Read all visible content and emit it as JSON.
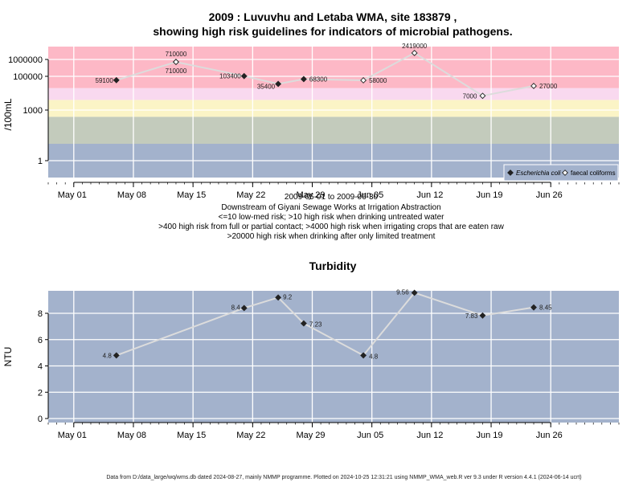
{
  "chart_data": [
    {
      "type": "line",
      "title": "2009 : Luvuvhu and Letaba WMA, site 183879 ,",
      "subtitle": "showing high risk guidelines for indicators of microbial pathogens.",
      "ylabel": "/100mL",
      "y_scale": "log",
      "yticks": [
        "1",
        "1000",
        "100000",
        "1000000"
      ],
      "xticks": [
        "May 01",
        "May 08",
        "May 15",
        "May 22",
        "May 29",
        "Jun 05",
        "Jun 12",
        "Jun 19",
        "Jun 26"
      ],
      "xlim": [
        "2009-04-28",
        "2009-07-04"
      ],
      "risk_bands": [
        {
          "from": 0.1,
          "to": 10,
          "color": "#a3b2cc"
        },
        {
          "from": 10,
          "to": 400,
          "color": "#c3cbbc"
        },
        {
          "from": 400,
          "to": 4000,
          "color": "#fbf4c6"
        },
        {
          "from": 4000,
          "to": 20000,
          "color": "#f9d9ef"
        },
        {
          "from": 20000,
          "to": 8000000,
          "color": "#fdb8c6"
        }
      ],
      "series": [
        {
          "name": "Escherichia coli",
          "marker": "filled-diamond",
          "points": [
            {
              "date": "2009-05-06",
              "value": 59100,
              "label": "59100"
            },
            {
              "date": "2009-05-13",
              "value": 710000,
              "label": "710000"
            },
            {
              "date": "2009-05-21",
              "value": 103400,
              "label": "103400"
            },
            {
              "date": "2009-05-25",
              "value": 35400,
              "label": "35400"
            },
            {
              "date": "2009-05-28",
              "value": 68300,
              "label": "68300"
            }
          ]
        },
        {
          "name": "faecal coliforms",
          "marker": "open-diamond",
          "points": [
            {
              "date": "2009-05-13",
              "value": 710000,
              "label": "710000"
            },
            {
              "date": "2009-06-04",
              "value": 58000,
              "label": "58000"
            },
            {
              "date": "2009-06-10",
              "value": 2419000,
              "label": "2419000"
            },
            {
              "date": "2009-06-18",
              "value": 7000,
              "label": "7000"
            },
            {
              "date": "2009-06-24",
              "value": 27000,
              "label": "27000"
            }
          ]
        }
      ],
      "connecting_line": [
        {
          "date": "2009-05-06",
          "value": 59100
        },
        {
          "date": "2009-05-13",
          "value": 710000
        },
        {
          "date": "2009-05-21",
          "value": 103400
        },
        {
          "date": "2009-05-25",
          "value": 35400
        },
        {
          "date": "2009-05-28",
          "value": 68300
        },
        {
          "date": "2009-06-04",
          "value": 58000
        },
        {
          "date": "2009-06-10",
          "value": 2419000
        },
        {
          "date": "2009-06-18",
          "value": 7000
        },
        {
          "date": "2009-06-24",
          "value": 27000
        }
      ],
      "legend_position": "bottom-right",
      "notes": [
        "2009-05-01 to 2009-06-30",
        "Downstream of Giyani Sewage Works at Irrigation Abstraction",
        "<=10 low-med risk; >10 high risk when drinking untreated water",
        ">400 high risk from full or partial contact; >4000 high risk when irrigating crops that are eaten raw",
        ">20000 high risk when drinking after only limited treatment"
      ],
      "grid": true
    },
    {
      "type": "line",
      "title": "Turbidity",
      "ylabel": "NTU",
      "ylim": [
        -0.3,
        9.9
      ],
      "yticks": [
        0,
        2,
        4,
        6,
        8
      ],
      "xticks": [
        "May 01",
        "May 08",
        "May 15",
        "May 22",
        "May 29",
        "Jun 05",
        "Jun 12",
        "Jun 19",
        "Jun 26"
      ],
      "xlim": [
        "2009-04-28",
        "2009-07-04"
      ],
      "series": [
        {
          "points": [
            {
              "date": "2009-05-06",
              "value": 4.8,
              "label": "4.8"
            },
            {
              "date": "2009-05-21",
              "value": 8.4,
              "label": "8.4"
            },
            {
              "date": "2009-05-25",
              "value": 9.2,
              "label": "9.2"
            },
            {
              "date": "2009-05-28",
              "value": 7.23,
              "label": "7.23"
            },
            {
              "date": "2009-06-04",
              "value": 4.8,
              "label": "4.8"
            },
            {
              "date": "2009-06-10",
              "value": 9.56,
              "label": "9.56"
            },
            {
              "date": "2009-06-18",
              "value": 7.83,
              "label": "7.83"
            },
            {
              "date": "2009-06-24",
              "value": 8.45,
              "label": "8.45"
            }
          ]
        }
      ],
      "grid": true
    }
  ],
  "footer": "Data from D:/data_large/wq/wms.db dated 2024-08-27, mainly NMMP programme. Plotted on 2024-10-25 12:31:21 using NMMP_WMA_web.R ver 9.3 under R version 4.4.1 (2024-06-14 ucrt)"
}
